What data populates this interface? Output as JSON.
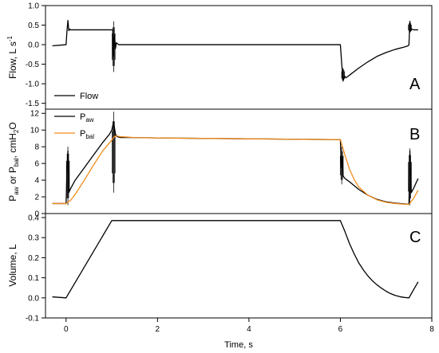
{
  "figure": {
    "x_axis": {
      "label": "Time, s",
      "range": [
        -0.45,
        8.0
      ],
      "ticks": [
        0,
        2,
        4,
        6,
        8
      ]
    }
  },
  "chart_data": [
    {
      "type": "line",
      "panel_letter": "A",
      "ylabel": "Flow, L s",
      "ylabel_sup": "-1",
      "ylim": [
        -1.65,
        1.0
      ],
      "yticks": [
        1.0,
        0.5,
        0.0,
        -0.5,
        -1.0,
        -1.5
      ],
      "ytick_labels": [
        "1.0",
        "0.5",
        "0.0",
        "-0.5",
        "-1.0",
        "-1.5"
      ],
      "legend": {
        "position": "bottom-left",
        "entries": [
          {
            "label": "Flow",
            "color": "#000000"
          }
        ]
      },
      "series": [
        {
          "name": "Flow",
          "color": "#000000",
          "x": [
            -0.3,
            -0.1,
            0.0,
            0.02,
            0.04,
            0.06,
            0.08,
            0.1,
            0.3,
            0.5,
            0.7,
            0.9,
            0.98,
            1.0,
            1.02,
            1.04,
            1.06,
            1.08,
            1.1,
            1.15,
            2.0,
            3.0,
            4.0,
            5.0,
            6.0,
            6.03,
            6.06,
            6.09,
            6.12,
            6.2,
            6.4,
            6.6,
            6.8,
            7.0,
            7.2,
            7.4,
            7.48,
            7.5,
            7.52,
            7.54,
            7.56,
            7.6,
            7.7
          ],
          "y": [
            -0.03,
            -0.01,
            0.0,
            0.35,
            0.62,
            0.36,
            0.4,
            0.38,
            0.38,
            0.38,
            0.38,
            0.38,
            0.38,
            0.38,
            0.38,
            -0.3,
            0.25,
            -0.1,
            0.05,
            0.0,
            0.0,
            0.0,
            0.0,
            0.0,
            0.0,
            -0.5,
            -0.92,
            -0.8,
            -0.85,
            -0.78,
            -0.6,
            -0.44,
            -0.3,
            -0.2,
            -0.12,
            -0.06,
            -0.03,
            0.0,
            0.6,
            0.35,
            0.4,
            0.38,
            0.38
          ],
          "spikes": [
            {
              "x": 1.04,
              "ymin": -0.7,
              "ymax": 0.6
            },
            {
              "x": 6.06,
              "ymin": -0.95,
              "ymax": -0.6
            },
            {
              "x": 7.52,
              "ymin": 0.3,
              "ymax": 0.58
            }
          ]
        }
      ]
    },
    {
      "type": "line",
      "panel_letter": "B",
      "ylabel": "P",
      "ylabel_sub1": "aw",
      "ylabel_mid": " or P",
      "ylabel_sub2": "bal",
      "ylabel_tail": ", cmH",
      "ylabel_sub3": "2",
      "ylabel_end": "O",
      "ylim": [
        0,
        12.5
      ],
      "yticks": [
        0,
        2,
        4,
        6,
        8,
        10,
        12
      ],
      "ytick_labels": [
        "0",
        "2",
        "4",
        "6",
        "8",
        "10",
        "12"
      ],
      "legend": {
        "position": "top-left",
        "entries": [
          {
            "label": "P",
            "sub": "aw",
            "color": "#000000"
          },
          {
            "label": "P",
            "sub": "bal",
            "color": "#f28c1e"
          }
        ]
      },
      "series": [
        {
          "name": "Paw",
          "color": "#000000",
          "x": [
            -0.3,
            -0.1,
            0.0,
            0.02,
            0.04,
            0.06,
            0.1,
            0.2,
            0.4,
            0.6,
            0.8,
            0.95,
            1.0,
            1.04,
            1.08,
            1.12,
            1.2,
            1.5,
            2.0,
            3.0,
            4.0,
            5.0,
            6.0,
            6.02,
            6.04,
            6.06,
            6.1,
            6.15,
            6.2,
            6.4,
            6.6,
            6.8,
            7.0,
            7.2,
            7.4,
            7.48,
            7.5,
            7.52,
            7.55,
            7.6,
            7.7
          ],
          "y": [
            1.2,
            1.2,
            1.2,
            5.0,
            7.5,
            2.5,
            3.0,
            4.0,
            5.5,
            7.0,
            8.5,
            9.5,
            10.0,
            11.0,
            9.5,
            9.2,
            9.1,
            9.1,
            9.05,
            9.0,
            8.95,
            8.9,
            8.85,
            5.5,
            6.8,
            4.5,
            4.2,
            4.0,
            3.8,
            2.9,
            2.2,
            1.7,
            1.4,
            1.25,
            1.15,
            1.12,
            1.2,
            7.5,
            2.5,
            3.0,
            4.2
          ],
          "spikes": [
            {
              "x": 0.04,
              "ymin": 1.0,
              "ymax": 8.0
            },
            {
              "x": 1.04,
              "ymin": 2.5,
              "ymax": 12.2
            },
            {
              "x": 6.03,
              "ymin": 3.5,
              "ymax": 8.0
            },
            {
              "x": 7.52,
              "ymin": 1.0,
              "ymax": 7.8
            }
          ]
        },
        {
          "name": "Pbal",
          "color": "#f28c1e",
          "x": [
            -0.3,
            0.0,
            0.1,
            0.2,
            0.4,
            0.6,
            0.8,
            1.0,
            1.05,
            1.1,
            1.2,
            1.5,
            2.0,
            3.0,
            4.0,
            5.0,
            6.0,
            6.1,
            6.2,
            6.3,
            6.4,
            6.6,
            6.8,
            7.0,
            7.2,
            7.4,
            7.5,
            7.6,
            7.7
          ],
          "y": [
            1.2,
            1.2,
            1.6,
            2.3,
            4.0,
            5.8,
            7.5,
            8.8,
            9.2,
            9.3,
            9.2,
            9.1,
            9.05,
            9.0,
            8.95,
            8.9,
            8.85,
            7.0,
            5.3,
            4.1,
            3.2,
            2.2,
            1.65,
            1.35,
            1.2,
            1.12,
            1.1,
            1.8,
            2.8
          ]
        }
      ]
    },
    {
      "type": "line",
      "panel_letter": "C",
      "ylabel": "Volume, L",
      "ylim": [
        -0.1,
        0.42
      ],
      "yticks": [
        0.4,
        0.3,
        0.2,
        0.1,
        0.0,
        -0.1
      ],
      "ytick_labels": [
        "0.4",
        "0.3",
        "0.2",
        "0.1",
        "0.0",
        "-0.1"
      ],
      "series": [
        {
          "name": "Volume",
          "color": "#000000",
          "x": [
            -0.3,
            0.0,
            1.0,
            2.0,
            3.0,
            4.0,
            5.0,
            6.0,
            6.1,
            6.2,
            6.3,
            6.4,
            6.5,
            6.6,
            6.7,
            6.8,
            6.9,
            7.0,
            7.1,
            7.2,
            7.3,
            7.4,
            7.5,
            7.6,
            7.7
          ],
          "y": [
            0.005,
            0.0,
            0.385,
            0.385,
            0.385,
            0.385,
            0.385,
            0.385,
            0.33,
            0.27,
            0.22,
            0.175,
            0.14,
            0.11,
            0.085,
            0.065,
            0.048,
            0.033,
            0.021,
            0.012,
            0.006,
            0.002,
            0.0,
            0.04,
            0.08
          ]
        }
      ]
    }
  ]
}
